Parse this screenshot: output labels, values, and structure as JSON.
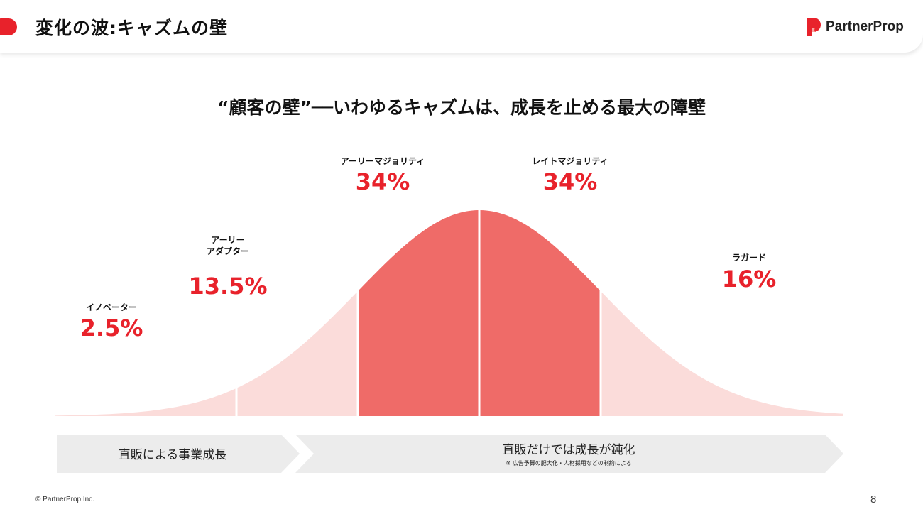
{
  "header": {
    "title": "変化の波:キャズムの壁",
    "logo_text": "PartnerProp"
  },
  "subtitle": "“顧客の壁”──いわゆるキャズムは、成長を止める最大の障壁",
  "chart_data": {
    "type": "area",
    "segments": [
      {
        "name": "イノベーター",
        "value": 2.5,
        "label": "2.5%",
        "highlight": false
      },
      {
        "name": "アーリー\nアダプター",
        "value": 13.5,
        "label": "13.5%",
        "highlight": false
      },
      {
        "name": "アーリーマジョリティ",
        "value": 34,
        "label": "34%",
        "highlight": true
      },
      {
        "name": "レイトマジョリティ",
        "value": 34,
        "label": "34%",
        "highlight": true
      },
      {
        "name": "ラガード",
        "value": 16,
        "label": "16%",
        "highlight": false
      }
    ],
    "colors": {
      "highlight": "#ef6b68",
      "light": "#fbdcda",
      "accent": "#e8222b"
    }
  },
  "arrows": [
    {
      "label": "直販による事業成長",
      "note": ""
    },
    {
      "label": "直販だけでは成長が鈍化",
      "note": "※ 広告予算の肥大化・人材採用などの制約による"
    }
  ],
  "footer": {
    "copyright": "© PartnerProp Inc.",
    "page": "8"
  }
}
